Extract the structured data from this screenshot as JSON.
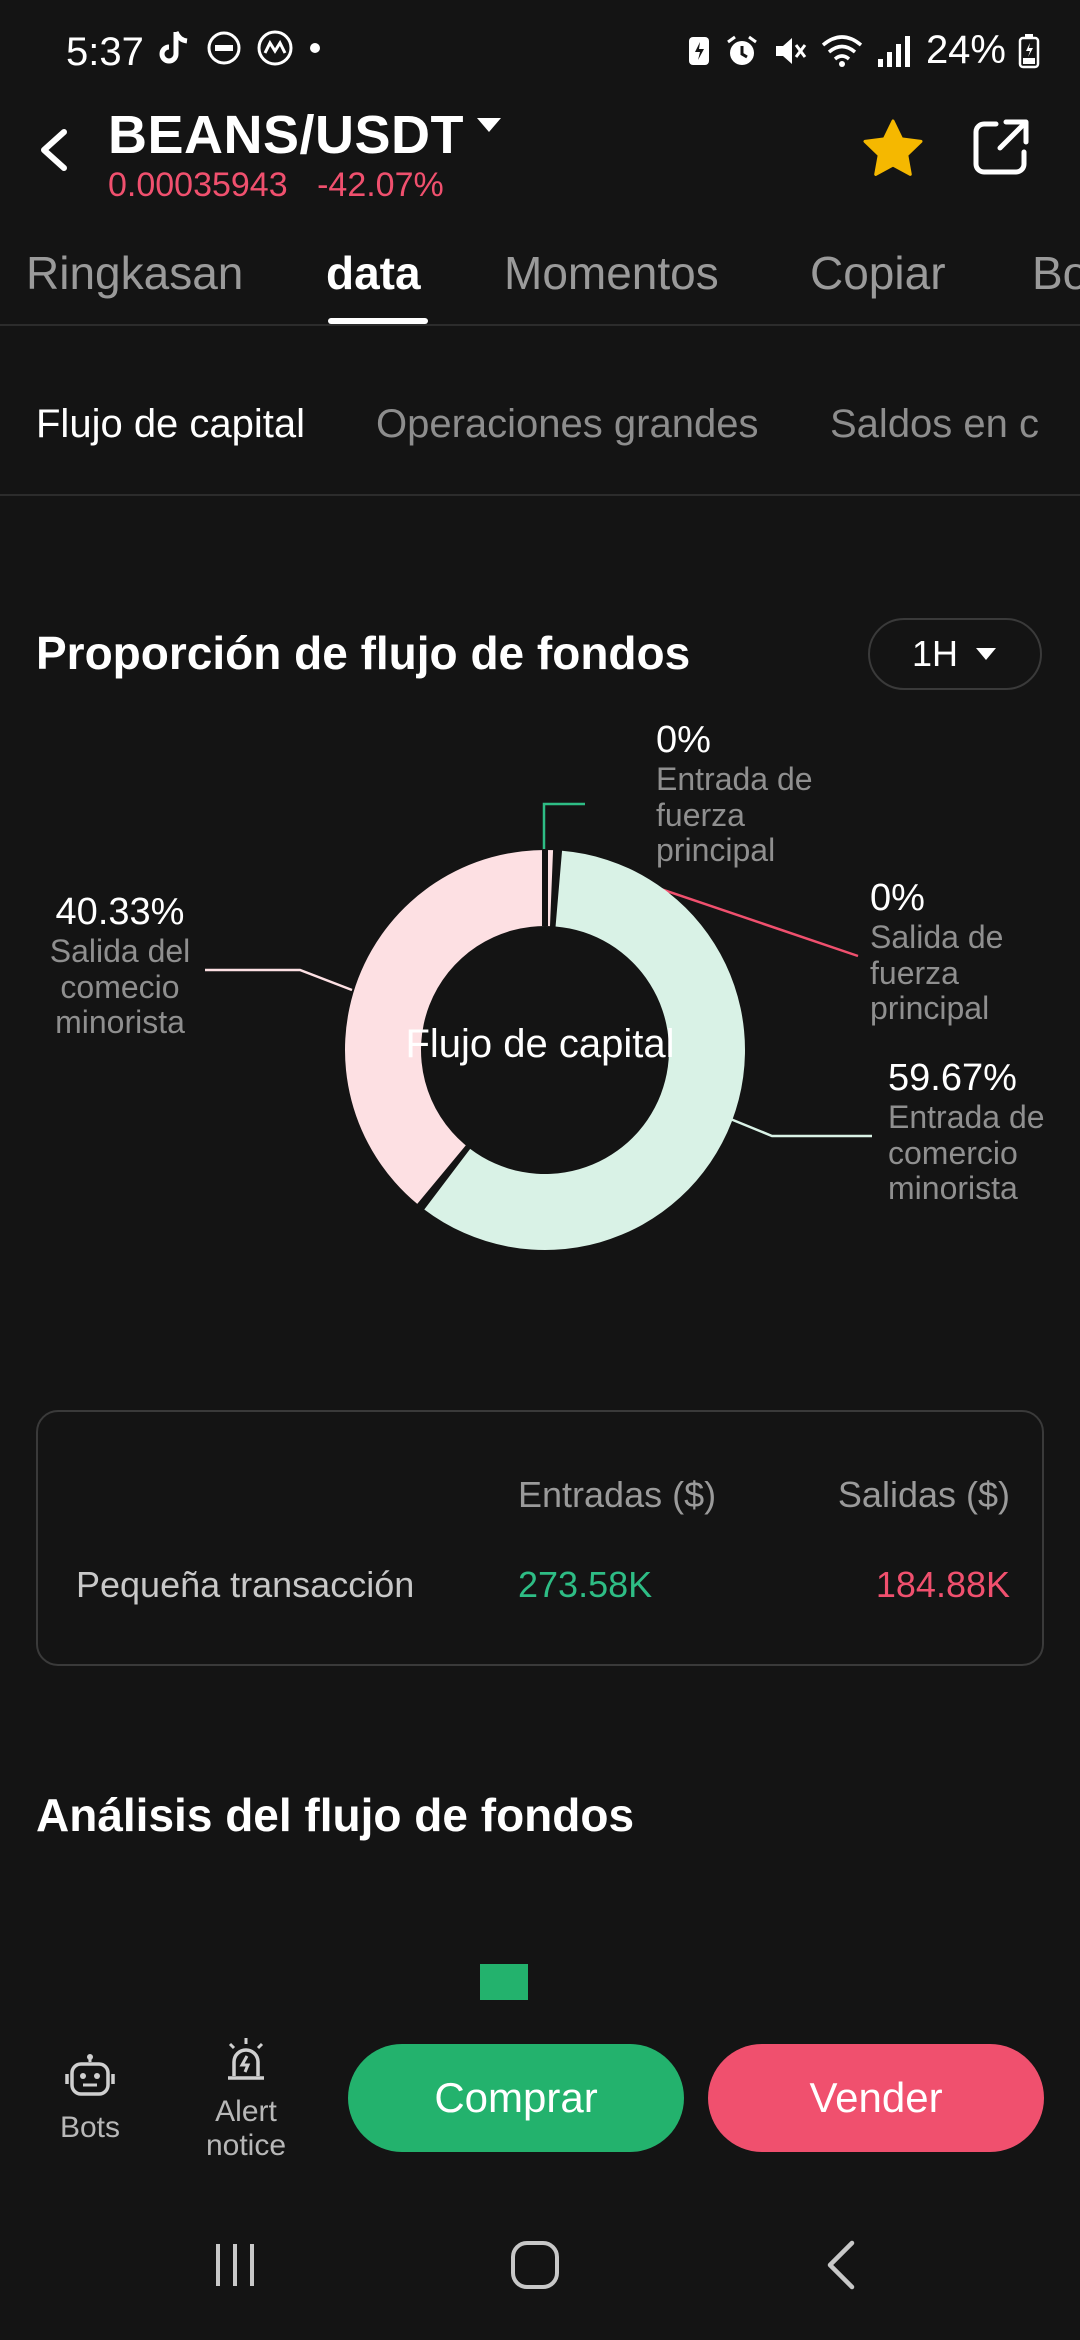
{
  "status_bar": {
    "time": "5:37",
    "battery": "24%"
  },
  "header": {
    "pair": "BEANS/USDT",
    "price": "0.00035943",
    "change": "-42.07%",
    "colors": {
      "negative": "#f0506e",
      "star": "#f5b800"
    }
  },
  "tabs": [
    "Ringkasan",
    "data",
    "Momentos",
    "Copiar",
    "Bo"
  ],
  "active_tab": "data",
  "subtabs": [
    "Flujo de capital",
    "Operaciones grandes",
    "Saldos en c"
  ],
  "fund_flow": {
    "title": "Proporción de flujo de fondos",
    "interval": "1H",
    "center_label": "Flujo de capital",
    "labels": {
      "main_in_pct": "0%",
      "main_in_text": [
        "Entrada de",
        "fuerza",
        "principal"
      ],
      "main_out_pct": "0%",
      "main_out_text": [
        "Salida de",
        "fuerza",
        "principal"
      ],
      "retail_out_pct": "40.33%",
      "retail_out_text": [
        "Salida del",
        "comecio",
        "minorista"
      ],
      "retail_in_pct": "59.67%",
      "retail_in_text": [
        "Entrada de",
        "comercio",
        "minorista"
      ]
    },
    "chart_data": {
      "type": "pie",
      "variant": "donut",
      "center_label": "Flujo de capital",
      "slices": [
        {
          "label": "Entrada de fuerza principal",
          "value": 0,
          "color": "#2ebd85"
        },
        {
          "label": "Salida de fuerza principal",
          "value": 0,
          "color": "#f0506e"
        },
        {
          "label": "Entrada de comercio minorista",
          "value": 59.67,
          "color": "#d9f2e6"
        },
        {
          "label": "Salida del comecio minorista",
          "value": 40.33,
          "color": "#fde0e3"
        }
      ]
    }
  },
  "flow_table": {
    "headers": [
      "Entradas ($)",
      "Salidas ($)"
    ],
    "rows": [
      {
        "label": "Pequeña transacción",
        "inflow": "273.58K",
        "outflow": "184.88K"
      }
    ],
    "colors": {
      "inflow": "#2ebd85",
      "outflow": "#f0506e"
    }
  },
  "analysis": {
    "title": "Análisis del flujo de fondos"
  },
  "bottom_bar": {
    "bots_label": "Bots",
    "alert_label_1": "Alert",
    "alert_label_2": "notice",
    "buy_label": "Comprar",
    "sell_label": "Vender"
  }
}
